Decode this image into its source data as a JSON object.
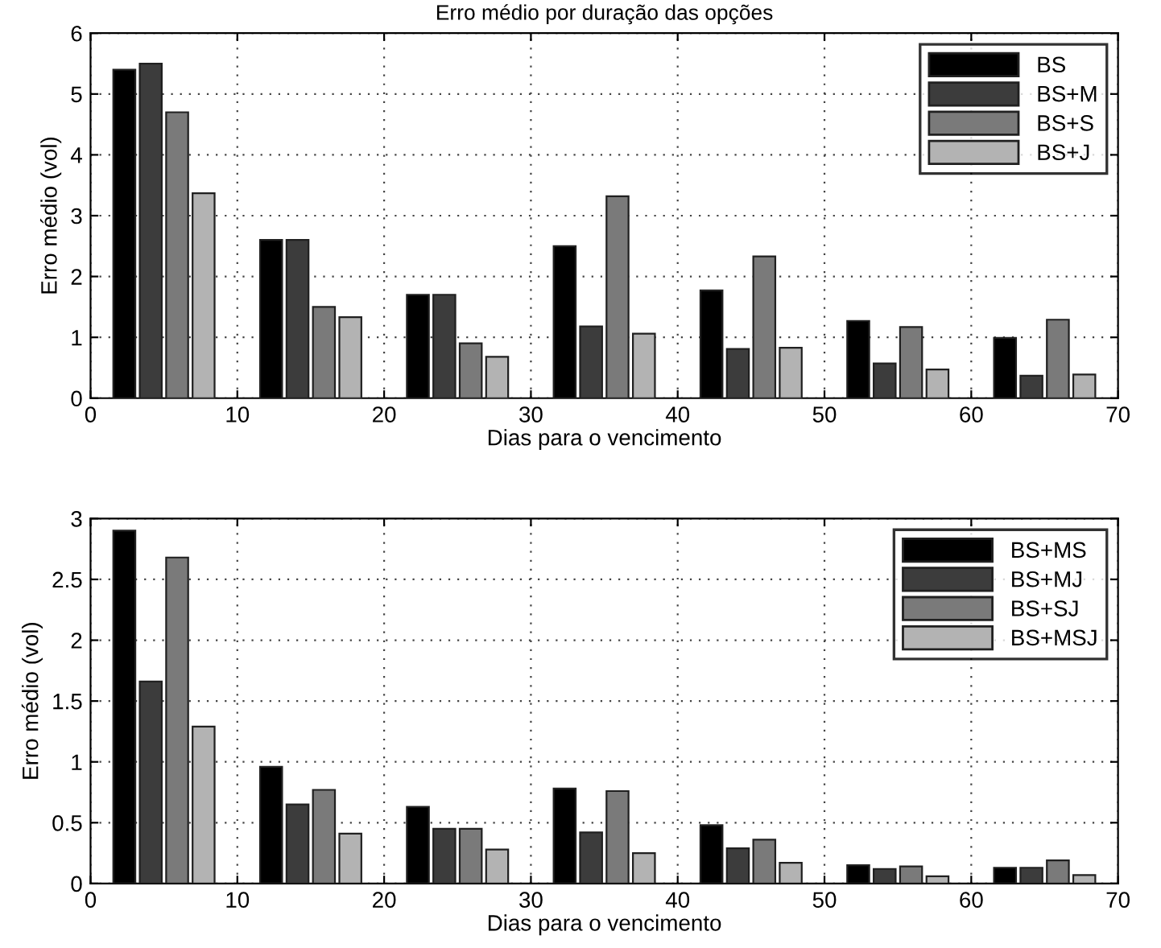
{
  "chart_data": [
    {
      "type": "bar",
      "title": "Erro médio por duração das opções",
      "xlabel": "Dias para o vencimento",
      "ylabel": "Erro médio (vol)",
      "xlim": [
        0,
        70
      ],
      "xticks": [
        0,
        10,
        20,
        30,
        40,
        50,
        60,
        70
      ],
      "ylim": [
        0,
        6
      ],
      "yticks": [
        0,
        1,
        2,
        3,
        4,
        5,
        6
      ],
      "grid": true,
      "legend": "top right",
      "series": [
        {
          "name": "BS",
          "color": "#000000",
          "x": [
            2.3,
            12.3,
            22.3,
            32.3,
            42.3,
            52.3,
            62.3
          ],
          "values": [
            5.4,
            2.6,
            1.7,
            2.5,
            1.77,
            1.27,
            0.99
          ]
        },
        {
          "name": "BS+M",
          "color": "#3c3c3c",
          "x": [
            4.1,
            14.1,
            24.1,
            34.1,
            44.1,
            54.1,
            64.1
          ],
          "values": [
            5.5,
            2.6,
            1.7,
            1.18,
            0.81,
            0.57,
            0.37
          ]
        },
        {
          "name": "BS+S",
          "color": "#7a7a7a",
          "x": [
            5.9,
            15.9,
            25.9,
            35.9,
            45.9,
            55.9,
            65.9
          ],
          "values": [
            4.7,
            1.5,
            0.9,
            3.32,
            2.33,
            1.17,
            1.29
          ]
        },
        {
          "name": "BS+J",
          "color": "#b3b3b3",
          "x": [
            7.7,
            17.7,
            27.7,
            37.7,
            47.7,
            57.7,
            67.7
          ],
          "values": [
            3.37,
            1.33,
            0.68,
            1.06,
            0.83,
            0.47,
            0.39
          ]
        }
      ]
    },
    {
      "type": "bar",
      "xlabel": "Dias para o vencimento",
      "ylabel": "Erro médio (vol)",
      "xlim": [
        0,
        70
      ],
      "xticks": [
        0,
        10,
        20,
        30,
        40,
        50,
        60,
        70
      ],
      "ylim": [
        0,
        3
      ],
      "yticks": [
        0,
        0.5,
        1,
        1.5,
        2,
        2.5,
        3
      ],
      "grid": true,
      "legend": "top right",
      "series": [
        {
          "name": "BS+MS",
          "color": "#000000",
          "x": [
            2.3,
            12.3,
            22.3,
            32.3,
            42.3,
            52.3,
            62.3
          ],
          "values": [
            2.9,
            0.96,
            0.63,
            0.78,
            0.48,
            0.15,
            0.13
          ]
        },
        {
          "name": "BS+MJ",
          "color": "#3c3c3c",
          "x": [
            4.1,
            14.1,
            24.1,
            34.1,
            44.1,
            54.1,
            64.1
          ],
          "values": [
            1.66,
            0.65,
            0.45,
            0.42,
            0.29,
            0.12,
            0.13
          ]
        },
        {
          "name": "BS+SJ",
          "color": "#7a7a7a",
          "x": [
            5.9,
            15.9,
            25.9,
            35.9,
            45.9,
            55.9,
            65.9
          ],
          "values": [
            2.68,
            0.77,
            0.45,
            0.76,
            0.36,
            0.14,
            0.19
          ]
        },
        {
          "name": "BS+MSJ",
          "color": "#b3b3b3",
          "x": [
            7.7,
            17.7,
            27.7,
            37.7,
            47.7,
            57.7,
            67.7
          ],
          "values": [
            1.29,
            0.41,
            0.28,
            0.25,
            0.17,
            0.06,
            0.07
          ]
        }
      ]
    }
  ]
}
